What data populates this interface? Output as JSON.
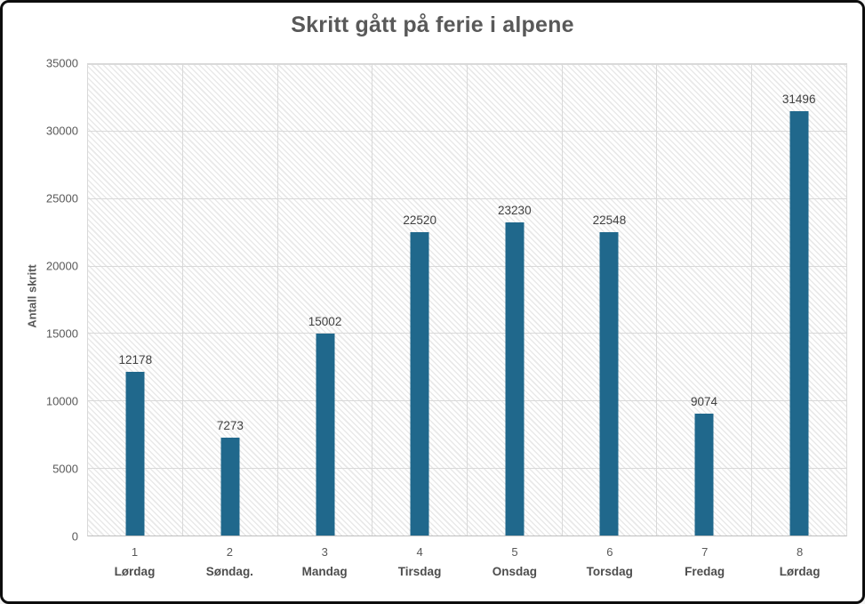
{
  "window": {
    "background_color": "#ffffff",
    "border_color": "#0d0d0d"
  },
  "chart_data": {
    "type": "bar",
    "title": "Skritt gått på ferie i alpene",
    "ylabel": "Antall skritt",
    "xlabel": "",
    "ylim": [
      0,
      35000
    ],
    "ytick_interval": 5000,
    "yticks": [
      0,
      5000,
      10000,
      15000,
      20000,
      25000,
      30000,
      35000
    ],
    "categories": [
      "1",
      "2",
      "3",
      "4",
      "5",
      "6",
      "7",
      "8"
    ],
    "category_day_labels": [
      "Lørdag",
      "Søndag.",
      "Mandag",
      "Tirsdag",
      "Onsdag",
      "Torsdag",
      "Fredag",
      "Lørdag"
    ],
    "values": [
      12178,
      7273,
      15002,
      22520,
      23230,
      22548,
      9074,
      31496
    ],
    "data_labels_visible": true,
    "legend_position": "none",
    "grid_horizontal": true,
    "grid_vertical": true,
    "plot_area_fill": "light-diagonal-hatch",
    "colors": {
      "bar": "#20688C",
      "title": "#595959",
      "axis_labels": "#595959",
      "data_labels": "#404040",
      "gridlines": "#d9d9d9"
    }
  }
}
